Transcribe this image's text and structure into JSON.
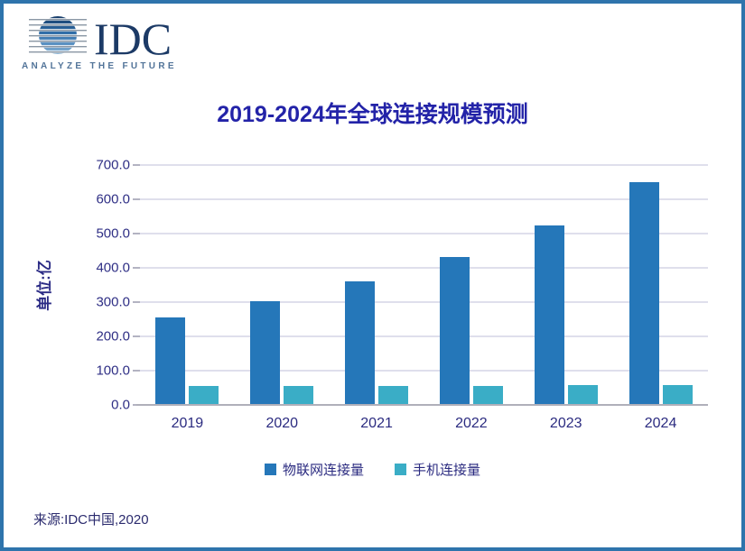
{
  "logo": {
    "wordmark": "IDC",
    "tagline": "ANALYZE THE FUTURE",
    "wordmark_color": "#1c3a66",
    "tagline_color": "#527499",
    "globe_colors": [
      "#173c68",
      "#2c6aa5",
      "#5e94c4",
      "#8cb6d6"
    ]
  },
  "page": {
    "border_color": "#2e74ac",
    "background": "#ffffff"
  },
  "source": "来源:IDC中国,2020",
  "chart_data": {
    "type": "bar",
    "title": "2019-2024年全球连接规模预测",
    "title_color": "#2323a8",
    "ylabel": "单位:亿",
    "xlabel": "",
    "ylim": [
      0,
      700
    ],
    "ytick_step": 100,
    "yticks": [
      "700.0",
      "600.0",
      "500.0",
      "400.0",
      "300.0",
      "200.0",
      "100.0",
      "0.0"
    ],
    "grid": true,
    "gridline_color": "#bfbfda",
    "axis_line_color": "#b0b0ba",
    "legend_position": "bottom",
    "categories": [
      "2019",
      "2020",
      "2021",
      "2022",
      "2023",
      "2024"
    ],
    "series": [
      {
        "name": "物联网连接量",
        "color": "#2577b9",
        "values": [
          255,
          302,
          360,
          432,
          525,
          650
        ]
      },
      {
        "name": "手机连接量",
        "color": "#3aadc6",
        "values": [
          55,
          55,
          55,
          56,
          57,
          57
        ]
      }
    ]
  }
}
